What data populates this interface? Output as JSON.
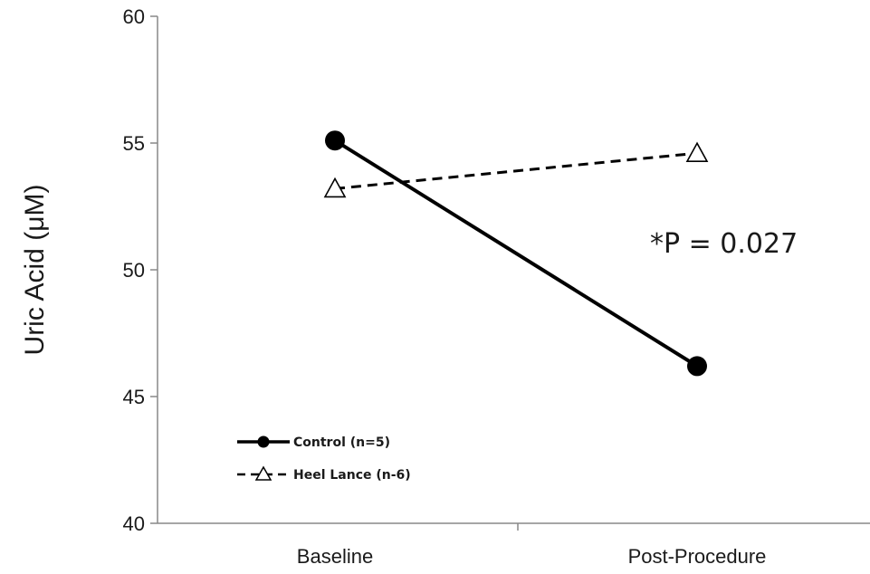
{
  "chart_data": {
    "type": "line",
    "title": "",
    "xlabel": "",
    "ylabel": "Uric Acid (μM)",
    "categories": [
      "Baseline",
      "Post-Procedure"
    ],
    "ylim": [
      40,
      60
    ],
    "yticks": [
      "40",
      "45",
      "50",
      "55",
      "60"
    ],
    "grid": false,
    "legend": "bottom-left",
    "series": [
      {
        "name": "Control (n=5)",
        "values": [
          55.1,
          46.2
        ],
        "marker": "filled-circle",
        "line": "solid",
        "color": "#000000"
      },
      {
        "name": "Heel Lance (n-6)",
        "values": [
          53.2,
          54.6
        ],
        "marker": "open-triangle",
        "line": "dashed",
        "color": "#000000"
      }
    ],
    "annotations": [
      {
        "text": "*P = 0.027"
      }
    ]
  }
}
